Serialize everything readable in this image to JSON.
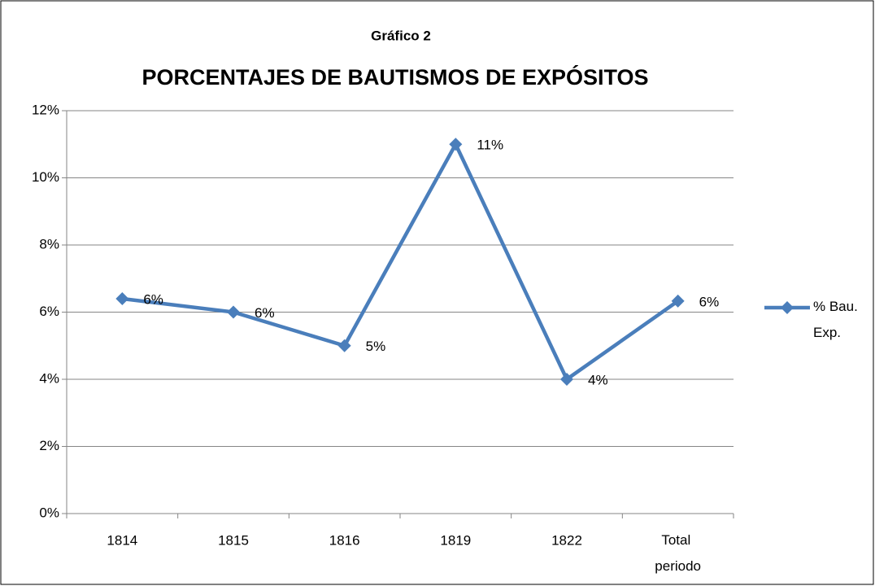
{
  "chart_data": {
    "type": "line",
    "subtitle": "Gráfico 2",
    "title": "PORCENTAJES DE BAUTISMOS DE EXPÓSITOS",
    "categories": [
      "1814",
      "1815",
      "1816",
      "1819",
      "1822",
      "Total periodo"
    ],
    "series": [
      {
        "name": "% Bau. Exp.",
        "color": "#4a7ebb",
        "values": [
          6.4,
          6.0,
          5.0,
          11.0,
          4.0,
          6.33
        ],
        "value_labels": [
          "6%",
          "6%",
          "5%",
          "11%",
          "4%",
          "6%"
        ]
      }
    ],
    "ylim": [
      0,
      12
    ],
    "yticks": [
      {
        "value": 0,
        "label": "0%"
      },
      {
        "value": 2,
        "label": "2%"
      },
      {
        "value": 4,
        "label": "4%"
      },
      {
        "value": 6,
        "label": "6%"
      },
      {
        "value": 8,
        "label": "8%"
      },
      {
        "value": 10,
        "label": "10%"
      },
      {
        "value": 12,
        "label": "12%"
      }
    ],
    "grid": true,
    "legend": "right"
  }
}
